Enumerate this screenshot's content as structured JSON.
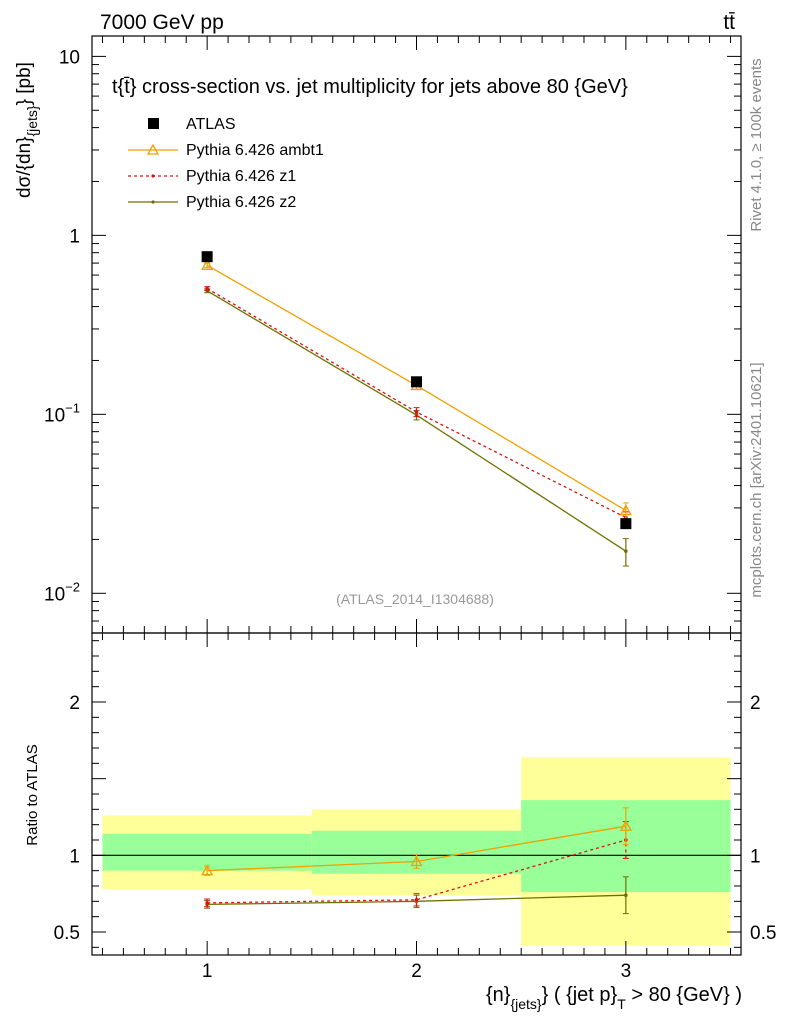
{
  "header": {
    "left": "7000 GeV pp",
    "right": "tt̄"
  },
  "side": {
    "rivet": "Rivet 4.1.0, ≥ 100k events",
    "mcplots": "mcplots.cern.ch [arXiv:2401.10621]"
  },
  "chart_data": [
    {
      "type": "line",
      "title": "t{t̄} cross-section vs. jet multiplicity for jets above 80 {GeV}",
      "ylabel": "dσ/{dn}_{jets} [pb]",
      "ylabel_parts": {
        "main": "dσ/{dn}",
        "sub": "{jets}",
        "unit": "} [pb]"
      },
      "yscale": "log",
      "ylim": [
        0.006,
        13
      ],
      "xlim": [
        0.45,
        3.55
      ],
      "xticks": [
        1,
        2,
        3
      ],
      "yticks": [
        {
          "value": 10,
          "label": "10"
        },
        {
          "value": 1,
          "label": "1"
        },
        {
          "value": 0.1,
          "label": "10",
          "sup": "−1"
        },
        {
          "value": 0.01,
          "label": "10",
          "sup": "−2"
        }
      ],
      "watermark": "(ATLAS_2014_I1304688)",
      "legend_position": "top-left",
      "x": [
        1,
        2,
        3
      ],
      "series": [
        {
          "name": "ATLAS",
          "kind": "data",
          "color": "#000000",
          "values": [
            0.76,
            0.152,
            0.0245
          ]
        },
        {
          "name": "Pythia 6.426 ambt1",
          "kind": "mc",
          "color": "#f0a000",
          "marker": "triangle",
          "dash": "",
          "values": [
            0.68,
            0.145,
            0.029
          ],
          "err": [
            0.02,
            0.007,
            0.003
          ]
        },
        {
          "name": "Pythia 6.426 z1",
          "kind": "mc",
          "color": "#e01010",
          "marker": "dot",
          "dash": "3,3",
          "values": [
            0.505,
            0.103,
            0.0265
          ],
          "err": [
            0.012,
            0.006,
            0.002
          ]
        },
        {
          "name": "Pythia 6.426 z2",
          "kind": "mc",
          "color": "#707000",
          "marker": "dot",
          "dash": "",
          "values": [
            0.49,
            0.099,
            0.0172
          ],
          "err": [
            0.012,
            0.006,
            0.003
          ]
        }
      ]
    },
    {
      "type": "line",
      "ylabel": "Ratio to ATLAS",
      "xlabel": "{n}_{jets} ( {jet p}_T > 80 {GeV} )",
      "xlabel_parts": {
        "a": "{n}",
        "asub": "{jets}",
        "b": "} ( {jet p}",
        "bsub": "T",
        "c": " > 80 {GeV} )"
      },
      "ylim": [
        0.35,
        2.45
      ],
      "xlim": [
        0.45,
        3.55
      ],
      "xticks": [
        1,
        2,
        3
      ],
      "yticks": [
        {
          "value": 0.5,
          "label": "0.5"
        },
        {
          "value": 1,
          "label": "1"
        },
        {
          "value": 2,
          "label": "2"
        }
      ],
      "bands": [
        {
          "x0": 0.5,
          "x1": 1.5,
          "yellow": [
            0.78,
            1.26
          ],
          "green": [
            0.9,
            1.14
          ]
        },
        {
          "x0": 1.5,
          "x1": 2.5,
          "yellow": [
            0.74,
            1.3
          ],
          "green": [
            0.88,
            1.16
          ]
        },
        {
          "x0": 2.5,
          "x1": 3.5,
          "yellow": [
            0.41,
            1.64
          ],
          "green": [
            0.76,
            1.36
          ]
        }
      ],
      "x": [
        1,
        2,
        3
      ],
      "series": [
        {
          "name": "Pythia 6.426 ambt1",
          "color": "#f0a000",
          "marker": "triangle",
          "dash": "",
          "values": [
            0.9,
            0.96,
            1.19
          ],
          "err": [
            0.03,
            0.045,
            0.12
          ]
        },
        {
          "name": "Pythia 6.426 z1",
          "color": "#e01010",
          "marker": "dot",
          "dash": "3,3",
          "values": [
            0.69,
            0.71,
            1.1
          ],
          "err": [
            0.025,
            0.04,
            0.12
          ]
        },
        {
          "name": "Pythia 6.426 z2",
          "color": "#707000",
          "marker": "dot",
          "dash": "",
          "values": [
            0.68,
            0.7,
            0.74
          ],
          "err": [
            0.025,
            0.04,
            0.12
          ]
        }
      ]
    }
  ]
}
